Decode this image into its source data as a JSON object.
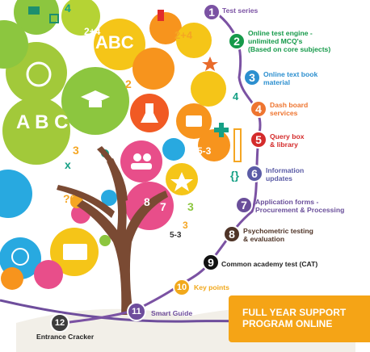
{
  "steps": [
    {
      "num": "1",
      "color": "#7b52a3",
      "lines": [
        "Test series"
      ]
    },
    {
      "num": "2",
      "color": "#169a4a",
      "lines": [
        "Online test engine -",
        "unlimited MCQ's",
        "(Based on core subjects)"
      ]
    },
    {
      "num": "3",
      "color": "#2c8fcf",
      "lines": [
        "Online text book",
        "material"
      ]
    },
    {
      "num": "4",
      "color": "#ee7530",
      "lines": [
        "Dash board",
        "services"
      ]
    },
    {
      "num": "5",
      "color": "#d42b2b",
      "lines": [
        "Query box",
        "& library"
      ]
    },
    {
      "num": "6",
      "color": "#5b5ca6",
      "lines": [
        "Information",
        "updates"
      ]
    },
    {
      "num": "7",
      "color": "#6a4f9a",
      "lines": [
        "Application forms -",
        "Procurement & Processing"
      ]
    },
    {
      "num": "8",
      "color": "#4f3427",
      "lines": [
        "Psychometric testing",
        "& evaluation"
      ]
    },
    {
      "num": "9",
      "color": "#111111",
      "lines": [
        "Common academy test (CAT)"
      ]
    },
    {
      "num": "10",
      "color": "#f1a81b",
      "lines": [
        "Key points"
      ]
    },
    {
      "num": "11",
      "color": "#6e4d9c",
      "lines": [
        "Smart Guide"
      ]
    },
    {
      "num": "12",
      "color": "#3d3d3d",
      "lines": [
        "Entrance Cracker"
      ]
    }
  ],
  "banner": {
    "line1": "FULL YEAR SUPPORT",
    "line2": "PROGRAM ONLINE",
    "color": "#f5a416"
  },
  "tree_glyphs": [
    "4",
    "2+4",
    "ABC",
    "2+4",
    "2",
    "4",
    "A B C",
    "3",
    "x",
    "?6",
    "8",
    "7",
    "3",
    "5-3",
    "5-3",
    "3"
  ],
  "palette": {
    "trunk": "#7a4a33",
    "bubble_green": "#8cc63f",
    "bubble_yellow": "#f5c518",
    "bubble_orange": "#f7941d",
    "bubble_pink": "#e84e8a",
    "bubble_blue": "#28a9e0"
  }
}
